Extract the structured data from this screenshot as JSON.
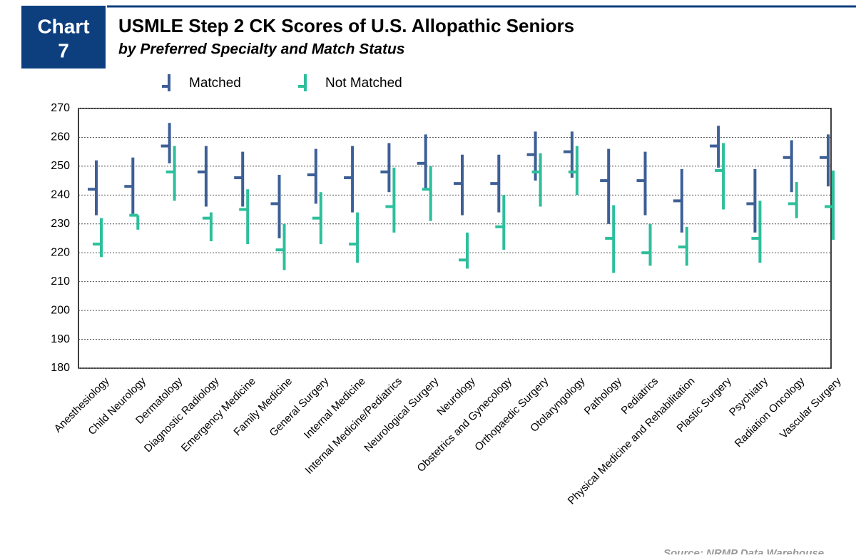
{
  "chart_data": {
    "type": "range",
    "badge": [
      "Chart",
      "7"
    ],
    "title": "USMLE Step 2 CK Scores of U.S. Allopathic Seniors",
    "subtitle": "by Preferred Specialty and Match Status",
    "source": "Source: NRMP Data Warehouse",
    "categories": [
      "Anesthesiology",
      "Child Neurology",
      "Dermatology",
      "Diagnostic Radiology",
      "Emergency Medicine",
      "Family Medicine",
      "General Surgery",
      "Internal Medicine",
      "Internal Medicine/Pediatrics",
      "Neurological Surgery",
      "Neurology",
      "Obstetrics and Gynecology",
      "Orthopaedic Surgery",
      "Otolaryngology",
      "Pathology",
      "Pediatrics",
      "Physical Medicine and Rehabilitation",
      "Plastic Surgery",
      "Psychiatry",
      "Radiation Oncology",
      "Vascular Surgery"
    ],
    "series": [
      {
        "name": "Matched",
        "color": "#3d5f96",
        "values": [
          242,
          243,
          257,
          248,
          246,
          237,
          247,
          246,
          248,
          251,
          244,
          244,
          254,
          255,
          245,
          245,
          238,
          257,
          237,
          253,
          253
        ],
        "high": [
          252,
          253,
          265,
          257,
          255,
          247,
          256,
          257,
          258,
          261,
          254,
          254,
          262,
          262,
          256,
          255,
          249,
          264,
          249,
          259,
          261
        ],
        "low": [
          233,
          233.5,
          251,
          236,
          236,
          225,
          237,
          234,
          241,
          242,
          233,
          234,
          245,
          246,
          230,
          233,
          227,
          249.5,
          227,
          241,
          243
        ]
      },
      {
        "name": "Not Matched",
        "color": "#2dbf9b",
        "values": [
          223,
          233,
          248,
          232,
          235,
          221,
          232,
          223,
          236,
          242,
          217.5,
          229,
          248,
          248,
          225,
          220,
          222,
          248.5,
          225,
          237,
          236
        ],
        "high": [
          232,
          233,
          257,
          234,
          242,
          230,
          241,
          234,
          249.5,
          250,
          227,
          240,
          254.5,
          257,
          236.5,
          230,
          229,
          258,
          238,
          244.5,
          248.5
        ],
        "low": [
          218.5,
          228,
          238,
          224,
          223,
          214,
          223,
          216.5,
          227,
          231,
          214.5,
          221,
          236,
          240,
          213,
          215.5,
          215.5,
          235,
          216.5,
          232,
          224.5
        ]
      }
    ],
    "ylim": [
      180,
      270
    ],
    "yticks": [
      180,
      190,
      200,
      210,
      220,
      230,
      240,
      250,
      260,
      270
    ],
    "grid": true
  }
}
